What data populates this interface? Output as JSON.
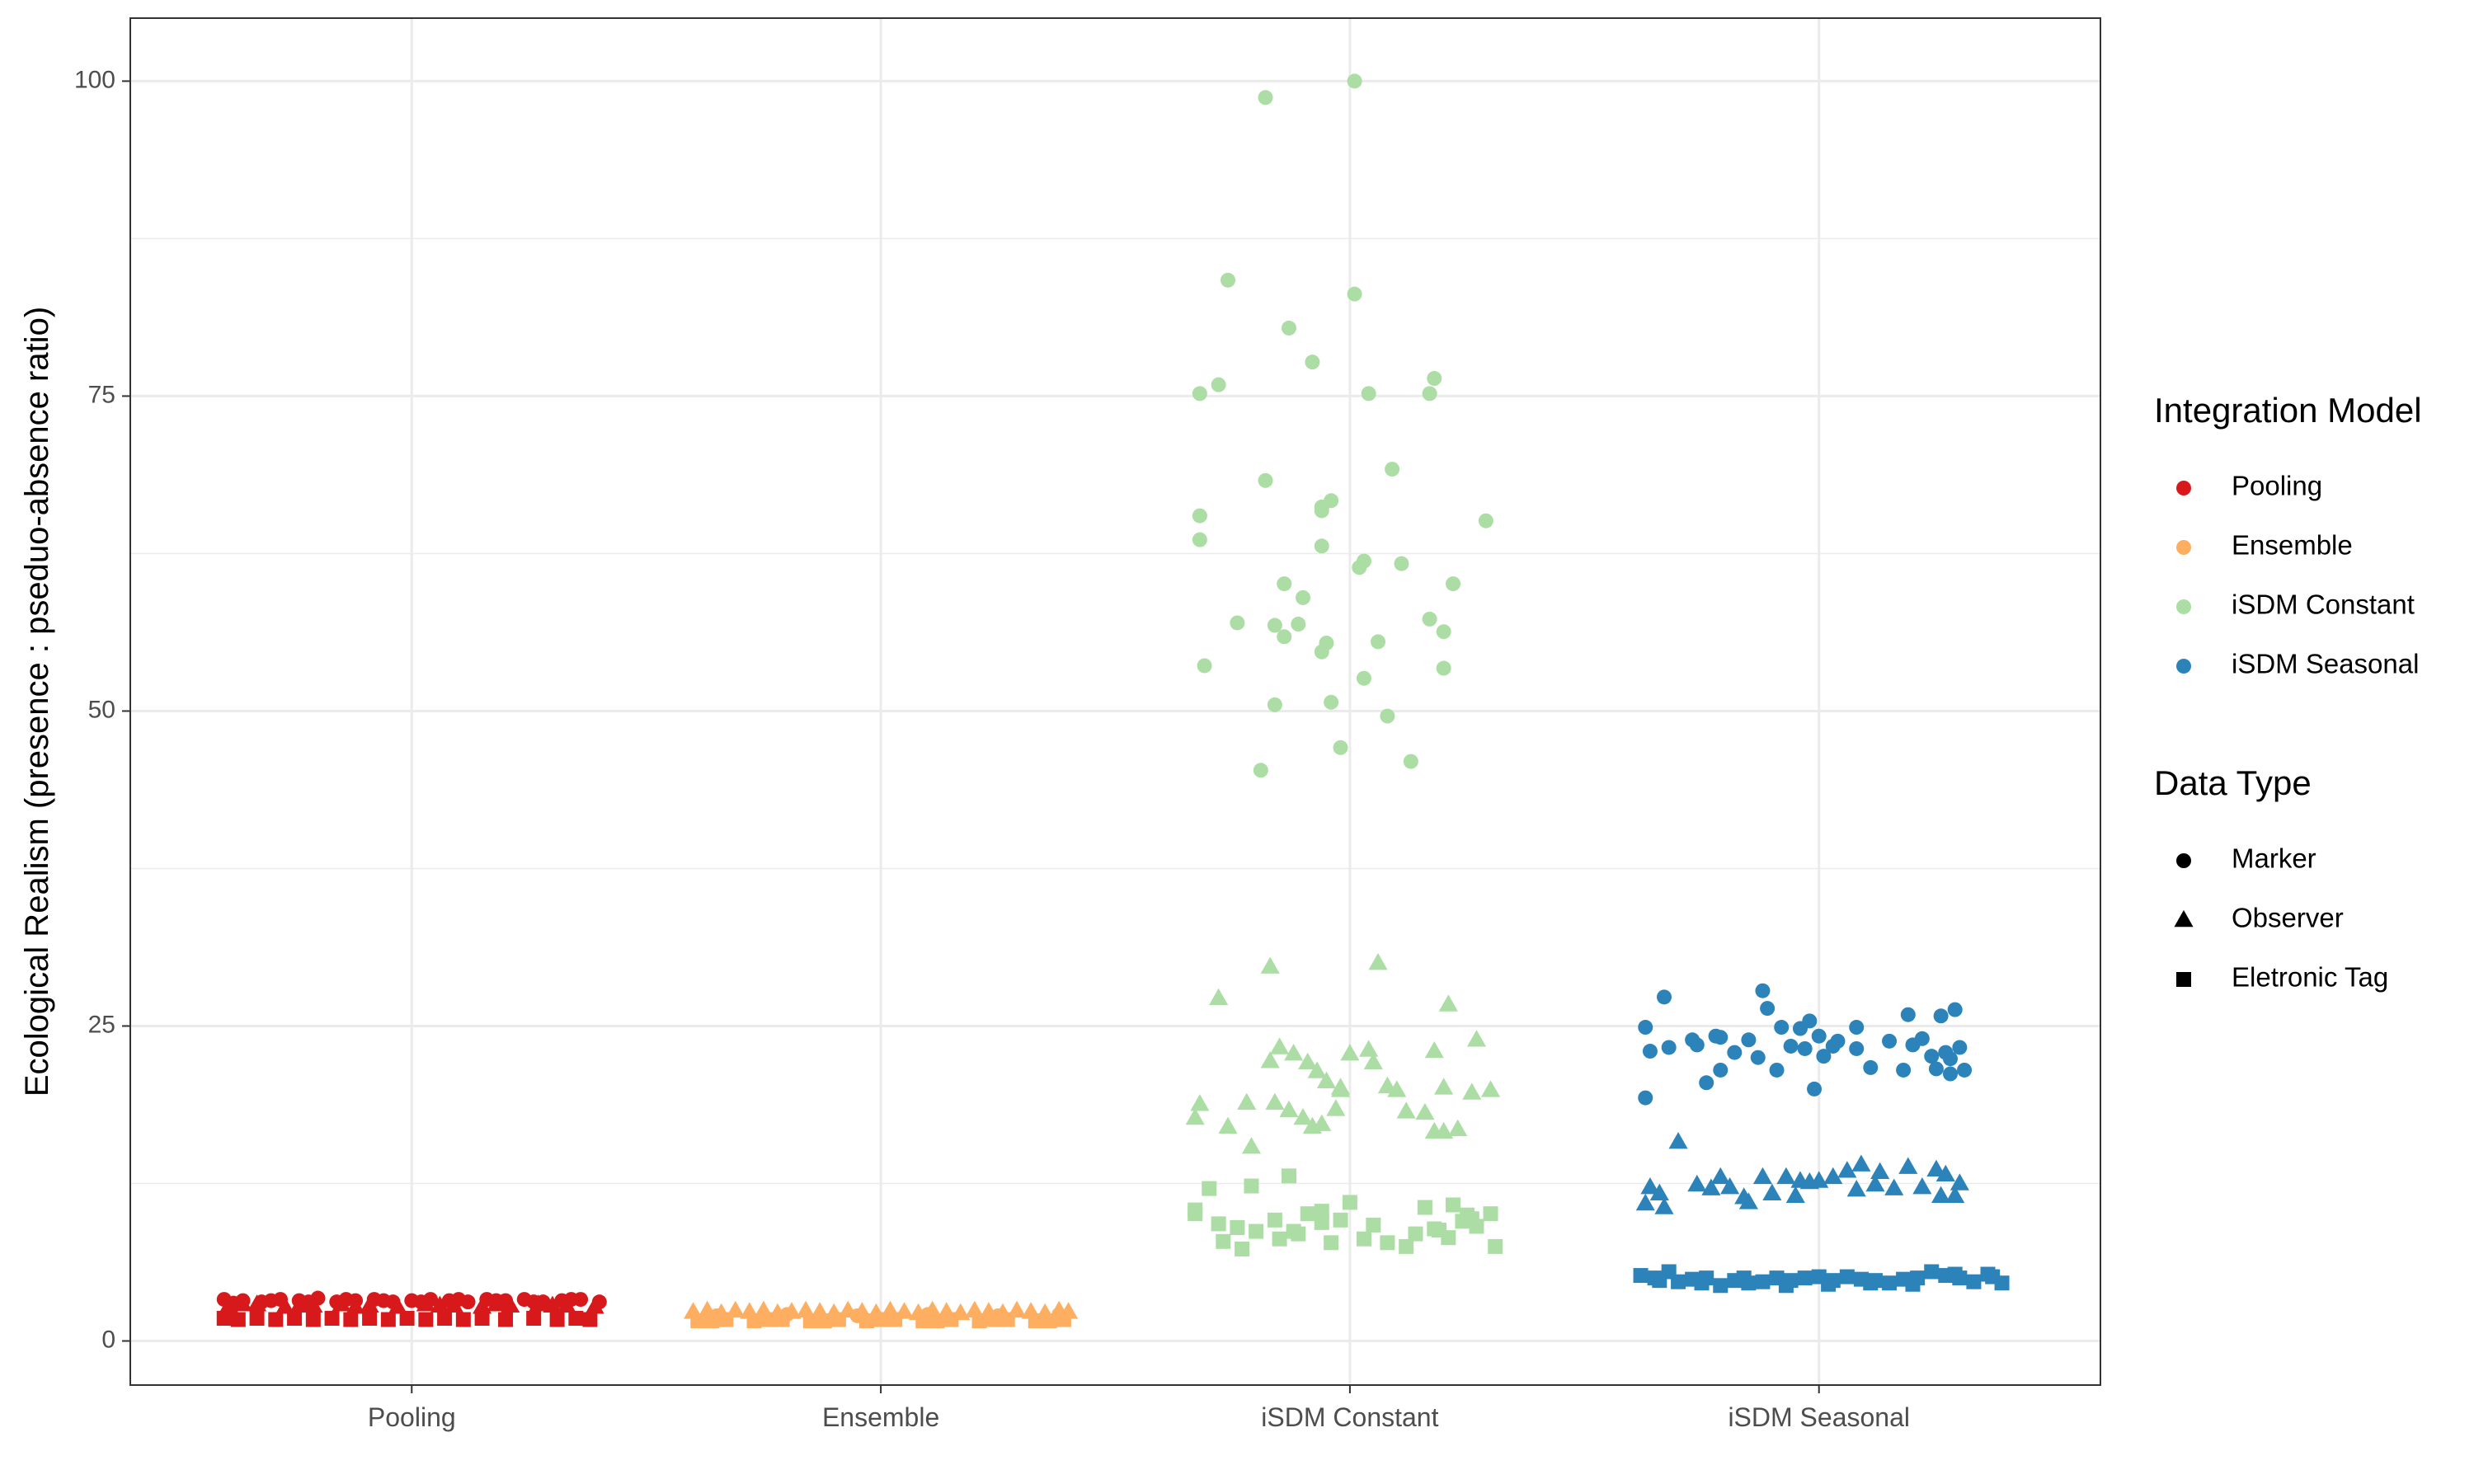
{
  "chart_data": {
    "type": "scatter",
    "title": "",
    "xlabel": "",
    "ylabel": "Ecological Realism (presence : pseduo-absence ratio)",
    "categories": [
      "Pooling",
      "Ensemble",
      "iSDM Constant",
      "iSDM Seasonal"
    ],
    "ylim": [
      -3.5,
      105
    ],
    "yticks": [
      0,
      25,
      50,
      75,
      100
    ],
    "grid": true,
    "legend_position": "right",
    "legends": [
      {
        "title": "Integration Model",
        "entries": [
          {
            "label": "Pooling",
            "color": "#d7191c"
          },
          {
            "label": "Ensemble",
            "color": "#fdae61"
          },
          {
            "label": "iSDM Constant",
            "color": "#abdda4"
          },
          {
            "label": "iSDM Seasonal",
            "color": "#2b83ba"
          }
        ]
      },
      {
        "title": "Data Type",
        "entries": [
          {
            "label": "Marker",
            "shape": "circle"
          },
          {
            "label": "Observer",
            "shape": "triangle"
          },
          {
            "label": "Eletronic Tag",
            "shape": "square"
          }
        ]
      }
    ],
    "colors": {
      "Pooling": "#d7191c",
      "Ensemble": "#fdae61",
      "iSDM Constant": "#abdda4",
      "iSDM Seasonal": "#2b83ba"
    },
    "shapes": {
      "Marker": "circle",
      "Observer": "triangle",
      "Eletronic Tag": "square"
    },
    "series": [
      {
        "model": "Pooling",
        "type": "Marker",
        "x_offsets": [
          -0.4,
          -0.36,
          -0.32,
          -0.28,
          -0.24,
          -0.2,
          -0.16,
          -0.12,
          -0.08,
          -0.04,
          0.0,
          0.04,
          0.08,
          0.12,
          0.16,
          0.2,
          0.24,
          0.28,
          0.32,
          0.36,
          0.4,
          -0.38,
          -0.3,
          -0.22,
          -0.14,
          -0.06,
          0.02,
          0.1,
          0.18,
          0.26,
          0.34
        ],
        "values": [
          3.3,
          3.2,
          3.1,
          3.3,
          3.2,
          3.4,
          3.1,
          3.2,
          3.3,
          3.1,
          3.2,
          3.3,
          3.2,
          3.1,
          3.3,
          3.2,
          3.3,
          3.1,
          3.2,
          3.3,
          3.1,
          3.0,
          3.2,
          3.1,
          3.3,
          3.2,
          3.1,
          3.3,
          3.2,
          3.1,
          3.3
        ]
      },
      {
        "model": "Pooling",
        "type": "Observer",
        "x_offsets": [
          -0.39,
          -0.33,
          -0.27,
          -0.21,
          -0.15,
          -0.09,
          -0.03,
          0.03,
          0.09,
          0.15,
          0.21,
          0.27,
          0.33,
          0.39,
          -0.36,
          -0.24,
          -0.12,
          0.06,
          0.18,
          0.3
        ],
        "values": [
          2.8,
          2.9,
          2.7,
          2.8,
          2.9,
          2.8,
          2.7,
          2.9,
          2.8,
          2.7,
          2.8,
          2.9,
          2.8,
          2.7,
          2.9,
          2.8,
          2.7,
          2.8,
          2.9,
          2.8
        ]
      },
      {
        "model": "Pooling",
        "type": "Eletronic Tag",
        "x_offsets": [
          -0.4,
          -0.37,
          -0.33,
          -0.29,
          -0.25,
          -0.21,
          -0.17,
          -0.13,
          -0.09,
          -0.05,
          -0.01,
          0.03,
          0.07,
          0.11,
          0.15,
          0.2,
          0.26,
          0.31,
          0.35,
          0.38
        ],
        "values": [
          1.8,
          1.7,
          1.8,
          1.7,
          1.8,
          1.7,
          1.8,
          1.7,
          1.8,
          1.7,
          1.8,
          1.7,
          1.8,
          1.7,
          1.8,
          1.7,
          1.8,
          1.7,
          1.8,
          1.7
        ]
      },
      {
        "model": "Ensemble",
        "type": "Marker",
        "x_offsets": [
          -0.35,
          -0.2,
          -0.05,
          0.1,
          0.25,
          0.38
        ],
        "values": [
          2.0,
          2.1,
          2.0,
          2.1,
          2.0,
          2.1
        ]
      },
      {
        "model": "Ensemble",
        "type": "Observer",
        "x_offsets": [
          -0.4,
          -0.37,
          -0.34,
          -0.31,
          -0.28,
          -0.25,
          -0.22,
          -0.19,
          -0.16,
          -0.13,
          -0.1,
          -0.07,
          -0.04,
          -0.01,
          0.02,
          0.05,
          0.08,
          0.11,
          0.14,
          0.17,
          0.2,
          0.23,
          0.26,
          0.29,
          0.32,
          0.35,
          0.38,
          0.4
        ],
        "values": [
          2.3,
          2.4,
          2.2,
          2.4,
          2.3,
          2.4,
          2.2,
          2.3,
          2.4,
          2.3,
          2.2,
          2.4,
          2.3,
          2.2,
          2.4,
          2.3,
          2.2,
          2.4,
          2.3,
          2.2,
          2.4,
          2.3,
          2.2,
          2.4,
          2.3,
          2.2,
          2.4,
          2.3
        ]
      },
      {
        "model": "Ensemble",
        "type": "Eletronic Tag",
        "x_offsets": [
          -0.39,
          -0.33,
          -0.27,
          -0.21,
          -0.15,
          -0.09,
          -0.03,
          0.03,
          0.09,
          0.15,
          0.21,
          0.27,
          0.33,
          0.39,
          -0.36,
          -0.24,
          -0.12,
          0.0,
          0.12,
          0.24,
          0.36
        ],
        "values": [
          1.6,
          1.7,
          1.6,
          1.7,
          1.6,
          1.7,
          1.6,
          1.7,
          1.6,
          1.7,
          1.6,
          1.7,
          1.6,
          1.7,
          1.6,
          1.7,
          1.6,
          1.7,
          1.6,
          1.7,
          1.6
        ]
      },
      {
        "model": "iSDM Constant",
        "type": "Marker",
        "x_offsets": [
          -0.18,
          0.01,
          -0.26,
          -0.13,
          0.01,
          -0.08,
          -0.32,
          -0.28,
          0.04,
          0.18,
          -0.32,
          0.17,
          0.09,
          -0.06,
          -0.04,
          -0.32,
          0.03,
          -0.06,
          -0.31,
          -0.06,
          0.02,
          0.22,
          -0.14,
          -0.16,
          0.2,
          -0.24,
          -0.14,
          -0.1,
          0.11,
          0.17,
          -0.05,
          -0.19,
          -0.06,
          0.06,
          -0.16,
          -0.02,
          0.03,
          -0.18,
          -0.04,
          0.08,
          0.2,
          0.13,
          -0.11,
          0.29
        ],
        "values": [
          98.7,
          100.0,
          84.2,
          80.4,
          83.1,
          77.7,
          75.2,
          75.9,
          75.2,
          76.4,
          65.5,
          75.2,
          69.2,
          66.2,
          66.7,
          63.6,
          61.9,
          63.1,
          53.6,
          65.9,
          61.4,
          60.1,
          60.1,
          56.8,
          56.3,
          57.0,
          55.9,
          59.0,
          61.7,
          57.3,
          55.4,
          45.3,
          54.7,
          55.5,
          50.5,
          47.1,
          52.6,
          68.3,
          50.7,
          49.6,
          53.4,
          46.0,
          56.9,
          65.1
        ]
      },
      {
        "model": "iSDM Constant",
        "type": "Observer",
        "x_offsets": [
          -0.17,
          0.06,
          -0.28,
          -0.09,
          0.21,
          -0.12,
          0.18,
          0.1,
          -0.17,
          -0.15,
          -0.07,
          -0.02,
          0.0,
          -0.22,
          -0.33,
          -0.26,
          -0.16,
          -0.1,
          -0.13,
          -0.08,
          -0.02,
          0.08,
          0.12,
          0.2,
          0.26,
          -0.32,
          -0.06,
          0.05,
          0.16,
          0.23,
          -0.21,
          -0.03,
          0.27,
          0.3,
          0.18,
          0.2,
          0.04,
          -0.05
        ],
        "values": [
          29.7,
          30.0,
          27.2,
          22.1,
          26.7,
          22.8,
          23.0,
          19.9,
          22.2,
          23.3,
          21.4,
          20.1,
          22.8,
          18.9,
          17.7,
          17.0,
          18.9,
          17.7,
          18.3,
          17.0,
          19.9,
          20.2,
          18.2,
          20.1,
          19.7,
          18.8,
          17.2,
          22.1,
          18.1,
          16.8,
          15.4,
          18.4,
          23.9,
          19.9,
          16.6,
          16.6,
          23.1,
          20.6
        ]
      },
      {
        "model": "iSDM Constant",
        "type": "Eletronic Tag",
        "x_offsets": [
          -0.3,
          -0.33,
          -0.21,
          -0.13,
          -0.24,
          -0.06,
          -0.02,
          0.0,
          0.3,
          0.16,
          -0.09,
          -0.16,
          0.22,
          0.25,
          -0.12,
          -0.28,
          -0.2,
          -0.06,
          0.03,
          0.18,
          0.24,
          -0.33,
          -0.27,
          -0.15,
          -0.04,
          0.08,
          0.19,
          0.26,
          0.31,
          -0.11,
          0.14,
          0.21,
          0.27,
          0.12,
          0.05,
          -0.23
        ],
        "values": [
          12.1,
          10.4,
          12.3,
          13.1,
          9.0,
          10.3,
          9.6,
          11.0,
          10.1,
          10.6,
          10.1,
          9.6,
          10.8,
          10.0,
          8.7,
          9.3,
          8.7,
          9.4,
          8.1,
          8.9,
          9.5,
          10.1,
          7.9,
          8.1,
          7.8,
          7.8,
          8.8,
          9.7,
          7.5,
          8.5,
          8.5,
          8.2,
          9.1,
          7.5,
          9.2,
          7.3
        ]
      },
      {
        "model": "iSDM Seasonal",
        "type": "Marker",
        "x_offsets": [
          -0.37,
          -0.33,
          -0.12,
          -0.21,
          -0.11,
          -0.02,
          0.04,
          0.08,
          0.19,
          0.26,
          0.29,
          -0.36,
          -0.27,
          -0.26,
          -0.18,
          -0.15,
          -0.08,
          -0.03,
          0.0,
          0.15,
          0.22,
          0.27,
          0.3,
          -0.32,
          -0.22,
          -0.13,
          -0.06,
          -0.04,
          0.01,
          0.08,
          0.24,
          0.28,
          0.31,
          -0.24,
          -0.09,
          0.25,
          0.28,
          0.03,
          0.11,
          -0.37,
          -0.21,
          -0.01,
          0.18,
          0.2
        ],
        "values": [
          24.9,
          27.3,
          27.8,
          24.1,
          26.4,
          25.4,
          23.8,
          24.9,
          25.9,
          25.8,
          26.3,
          23.0,
          23.9,
          23.5,
          22.9,
          23.9,
          24.9,
          23.2,
          24.2,
          23.8,
          24.0,
          22.9,
          23.3,
          23.3,
          24.2,
          22.5,
          23.4,
          24.8,
          22.6,
          23.2,
          22.6,
          22.4,
          21.5,
          20.5,
          21.5,
          21.6,
          21.2,
          23.4,
          21.7,
          19.3,
          21.5,
          20.0,
          21.5,
          23.5
        ]
      },
      {
        "model": "iSDM Seasonal",
        "type": "Observer",
        "x_offsets": [
          -0.36,
          -0.3,
          -0.21,
          -0.26,
          -0.19,
          -0.12,
          -0.07,
          -0.02,
          0.03,
          0.09,
          0.13,
          0.19,
          0.27,
          0.3,
          -0.34,
          -0.23,
          -0.16,
          -0.04,
          0.06,
          0.12,
          0.22,
          0.25,
          -0.37,
          -0.15,
          -0.1,
          0.16,
          -0.05,
          0.26,
          0.0,
          -0.33,
          0.08,
          0.29
        ],
        "values": [
          12.2,
          15.8,
          13.0,
          12.4,
          12.2,
          13.0,
          13.0,
          12.6,
          13.0,
          14.0,
          13.4,
          13.8,
          13.2,
          12.5,
          11.7,
          12.1,
          11.4,
          12.7,
          13.5,
          12.4,
          12.2,
          13.6,
          10.9,
          11.0,
          11.7,
          12.1,
          11.5,
          11.5,
          12.7,
          10.6,
          12.0,
          11.5
        ]
      },
      {
        "model": "iSDM Seasonal",
        "type": "Eletronic Tag",
        "x_offsets": [
          -0.38,
          -0.35,
          -0.32,
          -0.3,
          -0.27,
          -0.24,
          -0.21,
          -0.18,
          -0.15,
          -0.12,
          -0.09,
          -0.06,
          -0.03,
          0.0,
          0.03,
          0.06,
          0.09,
          0.12,
          0.15,
          0.18,
          0.21,
          0.24,
          0.27,
          0.3,
          0.33,
          0.36,
          0.39,
          -0.34,
          -0.25,
          -0.16,
          -0.07,
          0.02,
          0.11,
          0.2,
          0.29,
          0.37
        ],
        "values": [
          5.2,
          5.0,
          5.5,
          4.7,
          4.9,
          5.0,
          4.4,
          4.8,
          4.6,
          4.7,
          5.0,
          4.8,
          5.0,
          5.1,
          4.8,
          5.1,
          4.9,
          4.8,
          4.6,
          4.9,
          5.0,
          5.5,
          5.2,
          5.0,
          4.7,
          5.3,
          4.6,
          4.8,
          4.6,
          5.0,
          4.4,
          4.5,
          4.6,
          4.5,
          5.3,
          5.1
        ]
      }
    ]
  }
}
